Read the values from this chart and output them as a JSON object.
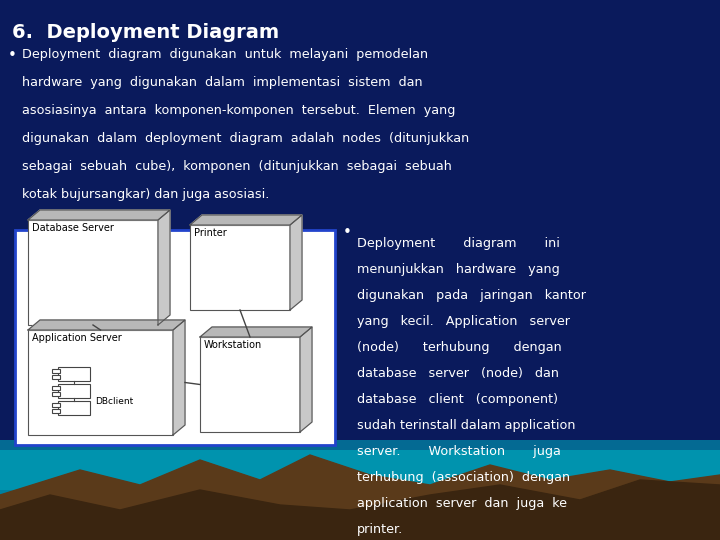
{
  "title": "6.  Deployment Diagram",
  "title_color": "#FFFFFF",
  "title_fontsize": 14,
  "bg_color": "#0a1a5c",
  "bullet1_lines": [
    "Deployment  diagram  digunakan  untuk  melayani  pemodelan",
    "hardware  yang  digunakan  dalam  implementasi  sistem  dan",
    "asosiasinya  antara  komponen-komponen  tersebut.  Elemen  yang",
    "digunakan  dalam  deployment  diagram  adalah  nodes  (ditunjukkan",
    "sebagai  sebuah  cube),  komponen  (ditunjukkan  sebagai  sebuah",
    "kotak bujursangkar) dan juga asosiasi."
  ],
  "bullet2_lines": [
    "Deployment       diagram       ini",
    "menunjukkan   hardware   yang",
    "digunakan   pada   jaringan   kantor",
    "yang   kecil.   Application   server",
    "(node)      terhubung      dengan",
    "database   server   (node)   dan",
    "database   client   (component)",
    "sudah terinstall dalam application",
    "server.       Workstation       juga",
    "terhubung  (association)  dengan",
    "application  server  dan  juga  ke",
    "printer."
  ],
  "text_color": "#FFFFFF",
  "node_depth_fill": "#B8B8B8",
  "node_right_fill": "#D0D0D0"
}
